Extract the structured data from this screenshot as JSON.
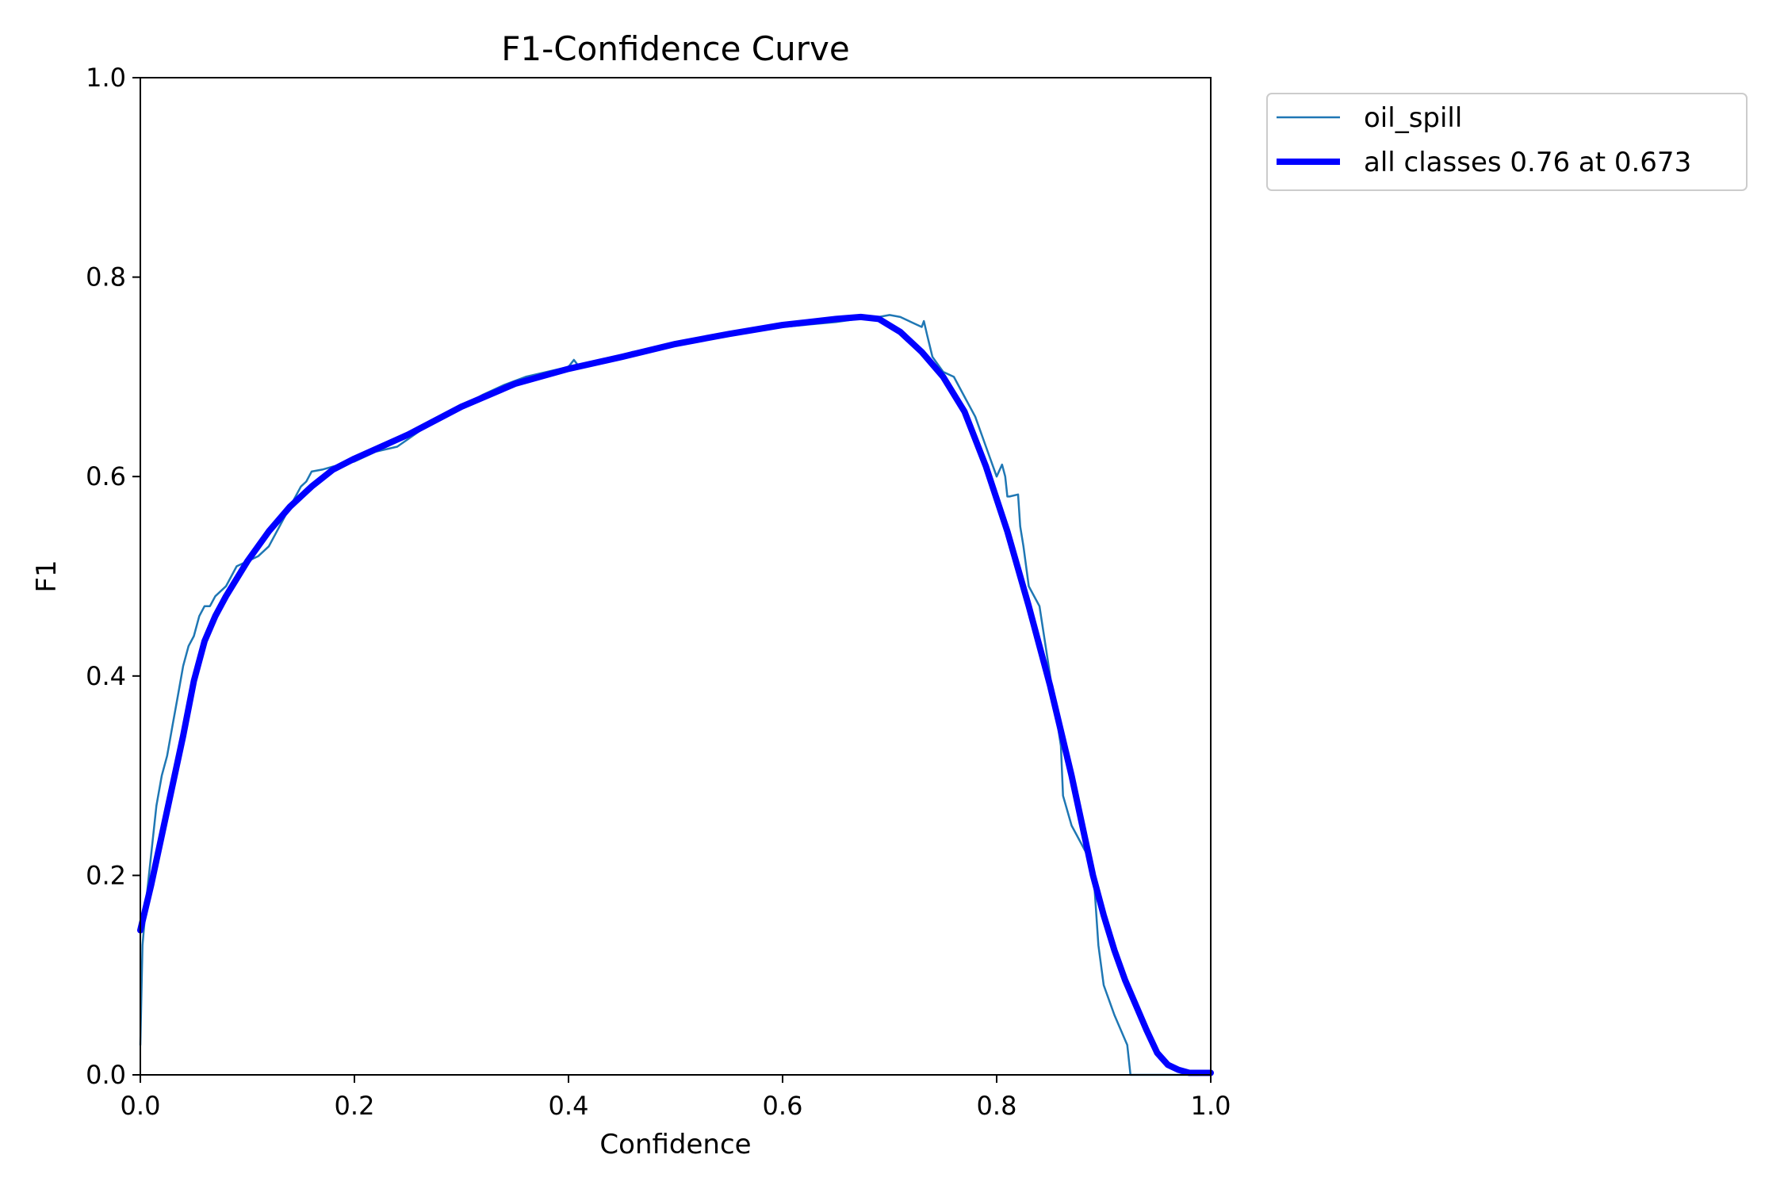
{
  "chart_data": {
    "type": "line",
    "title": "F1-Confidence Curve",
    "xlabel": "Confidence",
    "ylabel": "F1",
    "xlim": [
      0,
      1
    ],
    "ylim": [
      0,
      1
    ],
    "x_ticks": [
      "0.0",
      "0.2",
      "0.4",
      "0.6",
      "0.8",
      "1.0"
    ],
    "y_ticks": [
      "0.0",
      "0.2",
      "0.4",
      "0.6",
      "0.8",
      "1.0"
    ],
    "grid": false,
    "legend_position": "outside-top-right",
    "series": [
      {
        "name": "oil_spill",
        "color": "#1f77b4",
        "x": [
          0.0,
          0.002,
          0.006,
          0.01,
          0.015,
          0.02,
          0.025,
          0.03,
          0.035,
          0.04,
          0.045,
          0.05,
          0.055,
          0.06,
          0.065,
          0.07,
          0.08,
          0.09,
          0.1,
          0.11,
          0.12,
          0.13,
          0.14,
          0.15,
          0.155,
          0.16,
          0.17,
          0.18,
          0.2,
          0.22,
          0.24,
          0.26,
          0.28,
          0.3,
          0.32,
          0.34,
          0.36,
          0.38,
          0.4,
          0.405,
          0.41,
          0.415,
          0.44,
          0.46,
          0.48,
          0.5,
          0.55,
          0.6,
          0.65,
          0.67,
          0.69,
          0.7,
          0.71,
          0.72,
          0.73,
          0.732,
          0.735,
          0.74,
          0.75,
          0.76,
          0.77,
          0.78,
          0.79,
          0.8,
          0.805,
          0.808,
          0.81,
          0.812,
          0.82,
          0.822,
          0.825,
          0.83,
          0.84,
          0.85,
          0.86,
          0.862,
          0.87,
          0.875,
          0.88,
          0.89,
          0.895,
          0.9,
          0.91,
          0.92,
          0.922,
          0.925,
          0.93,
          0.95,
          0.97,
          1.0
        ],
        "y": [
          0.03,
          0.13,
          0.18,
          0.22,
          0.27,
          0.3,
          0.32,
          0.35,
          0.38,
          0.41,
          0.43,
          0.44,
          0.46,
          0.47,
          0.47,
          0.48,
          0.49,
          0.51,
          0.515,
          0.52,
          0.53,
          0.55,
          0.57,
          0.59,
          0.595,
          0.605,
          0.607,
          0.61,
          0.615,
          0.625,
          0.63,
          0.645,
          0.66,
          0.67,
          0.682,
          0.692,
          0.7,
          0.705,
          0.71,
          0.717,
          0.71,
          0.712,
          0.718,
          0.725,
          0.728,
          0.733,
          0.742,
          0.75,
          0.755,
          0.758,
          0.76,
          0.762,
          0.76,
          0.755,
          0.75,
          0.756,
          0.742,
          0.72,
          0.705,
          0.7,
          0.68,
          0.66,
          0.63,
          0.6,
          0.612,
          0.6,
          0.58,
          0.58,
          0.582,
          0.55,
          0.53,
          0.49,
          0.47,
          0.4,
          0.33,
          0.28,
          0.25,
          0.24,
          0.23,
          0.21,
          0.13,
          0.09,
          0.06,
          0.035,
          0.03,
          0.0,
          0.0,
          0.0,
          0.0,
          0.0
        ]
      },
      {
        "name": "all classes 0.76 at 0.673",
        "color": "#0000ff",
        "x": [
          0.0,
          0.01,
          0.02,
          0.03,
          0.04,
          0.05,
          0.06,
          0.07,
          0.08,
          0.1,
          0.12,
          0.14,
          0.16,
          0.18,
          0.2,
          0.25,
          0.3,
          0.35,
          0.4,
          0.45,
          0.5,
          0.55,
          0.6,
          0.65,
          0.673,
          0.69,
          0.71,
          0.73,
          0.75,
          0.77,
          0.79,
          0.81,
          0.83,
          0.85,
          0.87,
          0.89,
          0.9,
          0.91,
          0.92,
          0.93,
          0.94,
          0.95,
          0.96,
          0.97,
          0.98,
          1.0
        ],
        "y": [
          0.145,
          0.19,
          0.24,
          0.29,
          0.34,
          0.395,
          0.435,
          0.46,
          0.48,
          0.515,
          0.545,
          0.57,
          0.59,
          0.607,
          0.618,
          0.642,
          0.67,
          0.693,
          0.708,
          0.72,
          0.733,
          0.743,
          0.752,
          0.758,
          0.76,
          0.758,
          0.745,
          0.725,
          0.7,
          0.665,
          0.61,
          0.545,
          0.47,
          0.39,
          0.3,
          0.2,
          0.16,
          0.125,
          0.095,
          0.07,
          0.045,
          0.022,
          0.01,
          0.005,
          0.002,
          0.002
        ]
      }
    ]
  }
}
